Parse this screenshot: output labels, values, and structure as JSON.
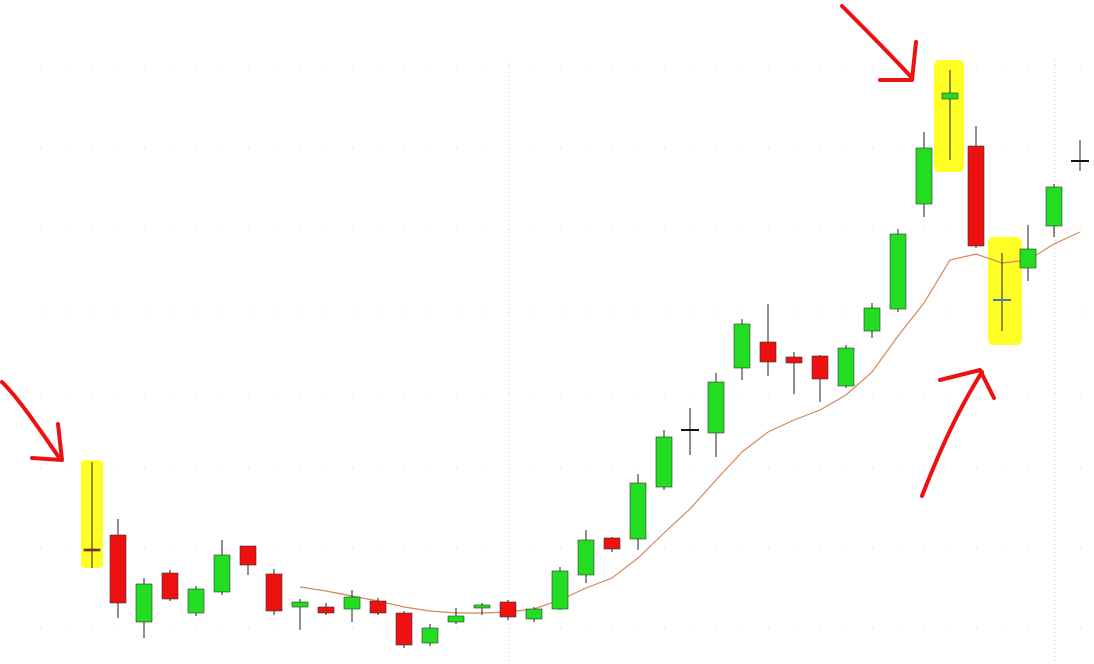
{
  "chart_data": {
    "type": "candlestick",
    "ylim": [
      0,
      664
    ],
    "open": [
      115,
      129,
      42,
      91,
      51,
      72,
      118,
      90,
      57,
      57,
      55,
      63,
      51,
      21,
      42,
      56,
      62,
      45,
      55,
      89,
      126,
      125,
      177,
      234,
      231,
      296,
      322,
      307,
      308,
      278,
      333,
      355,
      460,
      565,
      518,
      364,
      396,
      438,
      503
    ],
    "high": [
      202,
      145,
      86,
      94,
      78,
      124,
      118,
      95,
      65,
      61,
      74,
      66,
      53,
      40,
      56,
      61,
      64,
      57,
      97,
      134,
      127,
      190,
      234,
      256,
      291,
      345,
      360,
      312,
      309,
      319,
      361,
      435,
      532,
      594,
      538,
      411,
      439,
      480,
      524
    ],
    "low": [
      96,
      46,
      26,
      63,
      48,
      69,
      89,
      49,
      34,
      49,
      42,
      49,
      16,
      18,
      40,
      49,
      44,
      42,
      54,
      81,
      112,
      114,
      174,
      209,
      207,
      284,
      288,
      270,
      262,
      276,
      326,
      352,
      447,
      504,
      416,
      333,
      383,
      427,
      493
    ],
    "close": [
      113,
      61,
      80,
      65,
      75,
      109,
      99,
      53,
      62,
      51,
      67,
      51,
      19,
      36,
      48,
      59,
      47,
      55,
      93,
      124,
      115,
      181,
      227,
      234,
      282,
      340,
      302,
      301,
      285,
      316,
      356,
      430,
      516,
      571,
      418,
      364,
      415,
      477,
      503
    ],
    "colors": [
      "#b02020",
      "#ee1111",
      "#22dd22",
      "#ee1111",
      "#22dd22",
      "#22dd22",
      "#ee1111",
      "#ee1111",
      "#22dd22",
      "#ee1111",
      "#22dd22",
      "#ee1111",
      "#ee1111",
      "#22dd22",
      "#22dd22",
      "#22dd22",
      "#ee1111",
      "#22dd22",
      "#22dd22",
      "#22dd22",
      "#ee1111",
      "#22dd22",
      "#22dd22",
      "#111111",
      "#22dd22",
      "#22dd22",
      "#ee1111",
      "#ee1111",
      "#ee1111",
      "#22dd22",
      "#22dd22",
      "#22dd22",
      "#22dd22",
      "#22dd22",
      "#ee1111",
      "#4477bb",
      "#22dd22",
      "#22dd22",
      "#111111"
    ],
    "ma": [
      null,
      null,
      null,
      null,
      null,
      null,
      null,
      null,
      77,
      73,
      68,
      63,
      57,
      53,
      51,
      51,
      52,
      55,
      64,
      76,
      86,
      106,
      131,
      155,
      184,
      212,
      232,
      244,
      254,
      269,
      292,
      328,
      361,
      404,
      410,
      401,
      404,
      420,
      432
    ],
    "ma_color": "#d4885a"
  }
}
